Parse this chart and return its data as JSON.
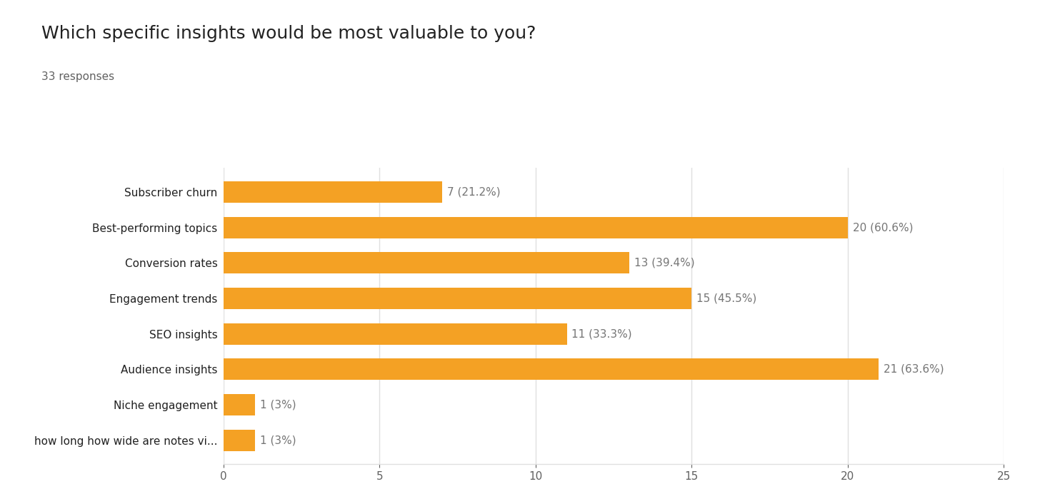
{
  "title": "Which specific insights would be most valuable to you?",
  "subtitle": "33 responses",
  "categories": [
    "how long how wide are notes vi...",
    "Niche engagement",
    "Audience insights",
    "SEO insights",
    "Engagement trends",
    "Conversion rates",
    "Best-performing topics",
    "Subscriber churn"
  ],
  "values": [
    1,
    1,
    21,
    11,
    15,
    13,
    20,
    7
  ],
  "labels": [
    "1 (3%)",
    "1 (3%)",
    "21 (63.6%)",
    "11 (33.3%)",
    "15 (45.5%)",
    "13 (39.4%)",
    "20 (60.6%)",
    "7 (21.2%)"
  ],
  "bar_color": "#F4A124",
  "xlim": [
    0,
    25
  ],
  "xticks": [
    0,
    5,
    10,
    15,
    20,
    25
  ],
  "title_fontsize": 18,
  "subtitle_fontsize": 11,
  "label_fontsize": 11,
  "tick_fontsize": 11,
  "background_color": "#ffffff",
  "grid_color": "#e0e0e0",
  "text_color": "#212121",
  "subtitle_color": "#616161",
  "label_color": "#757575"
}
